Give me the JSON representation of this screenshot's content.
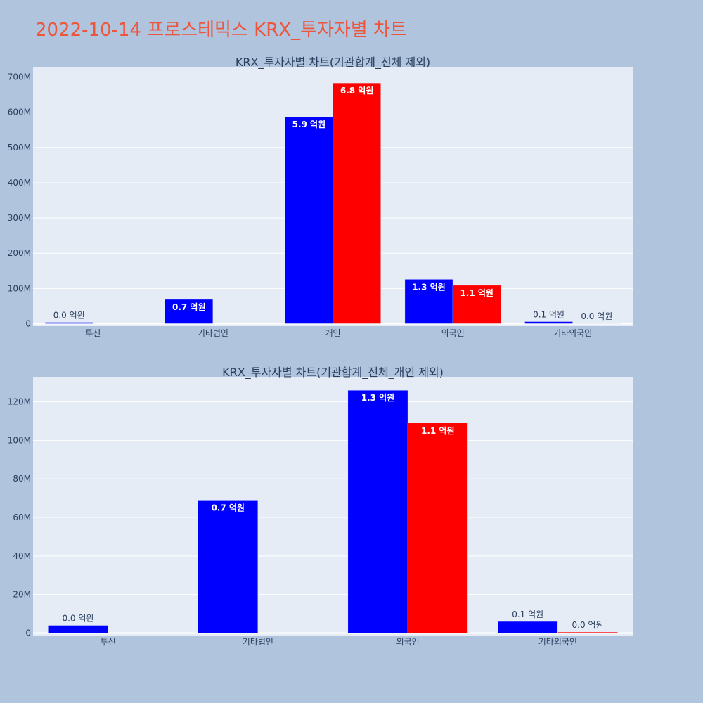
{
  "page_title": "2022-10-14 프로스테믹스 KRX_투자자별 차트",
  "colors": {
    "background": "#b0c4de",
    "plot_bg": "#e5ecf6",
    "title": "#ef553b",
    "series_a": "#0000ff",
    "series_b": "#ff0000",
    "text": "#2a3f5f"
  },
  "chart_data": [
    {
      "type": "bar",
      "title": "KRX_투자자별 차트(기관합계_전체 제외)",
      "categories": [
        "투신",
        "기타법인",
        "개인",
        "외국인",
        "기타외국인"
      ],
      "series": [
        {
          "color": "#0000ff",
          "values": [
            4000000,
            69000000,
            587000000,
            126000000,
            6000000
          ],
          "labels": [
            "0.0 억원",
            "0.7 억원",
            "5.9 억원",
            "1.3 억원",
            "0.1 억원"
          ]
        },
        {
          "color": "#ff0000",
          "values": [
            0,
            0,
            683000000,
            109000000,
            500000
          ],
          "labels": [
            "",
            "",
            "6.8 억원",
            "1.1 억원",
            "0.0 억원"
          ]
        }
      ],
      "yticks": [
        0,
        100000000,
        200000000,
        300000000,
        400000000,
        500000000,
        600000000,
        700000000
      ],
      "ytick_labels": [
        "0",
        "100M",
        "200M",
        "300M",
        "400M",
        "500M",
        "600M",
        "700M"
      ],
      "ylim": [
        -7000000,
        727000000
      ],
      "grid": true
    },
    {
      "type": "bar",
      "title": "KRX_투자자별 차트(기관합계_전체_개인 제외)",
      "categories": [
        "투신",
        "기타법인",
        "외국인",
        "기타외국인"
      ],
      "series": [
        {
          "color": "#0000ff",
          "values": [
            4000000,
            69000000,
            126000000,
            6000000
          ],
          "labels": [
            "0.0 억원",
            "0.7 억원",
            "1.3 억원",
            "0.1 억원"
          ]
        },
        {
          "color": "#ff0000",
          "values": [
            0,
            0,
            109000000,
            500000
          ],
          "labels": [
            "",
            "",
            "1.1 억원",
            "0.0 억원"
          ]
        }
      ],
      "yticks": [
        0,
        20000000,
        40000000,
        60000000,
        80000000,
        100000000,
        120000000
      ],
      "ytick_labels": [
        "0",
        "20M",
        "40M",
        "60M",
        "80M",
        "100M",
        "120M"
      ],
      "ylim": [
        -1300000,
        133000000
      ],
      "grid": true
    }
  ]
}
